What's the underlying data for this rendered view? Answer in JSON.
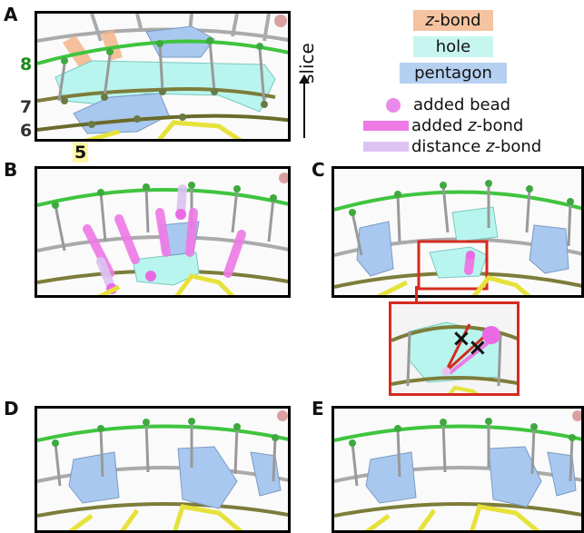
{
  "panels": {
    "a": "A",
    "b": "B",
    "c": "C",
    "d": "D",
    "e": "E"
  },
  "row_labels": {
    "r8": "8",
    "r7": "7",
    "r6": "6",
    "r5": "5"
  },
  "axis": {
    "slice": "slice"
  },
  "legend": {
    "z_bond_italic": "z",
    "z_bond_rest": "-bond",
    "hole": "hole",
    "pentagon": "pentagon",
    "added_bead": "added bead",
    "added_z_bond_prefix": "added ",
    "added_z_bond_italic": "z",
    "added_z_bond_rest": "-bond",
    "distance_z_bond_prefix": "distance ",
    "distance_z_bond_italic": "z",
    "distance_z_bond_rest": "-bond"
  },
  "colors": {
    "z_bond": "#f5b48a",
    "hole": "#b8f5ee",
    "pentagon": "#a9c8ef",
    "added_bead": "#e879e8",
    "added_z_bond": "#ee7ae6",
    "distance_z_bond": "#d6b8f0",
    "ring8": "#3fc43f",
    "ring6": "#e6e23a",
    "highlight": "#d52b1e"
  },
  "markers": {
    "cross": "×"
  }
}
